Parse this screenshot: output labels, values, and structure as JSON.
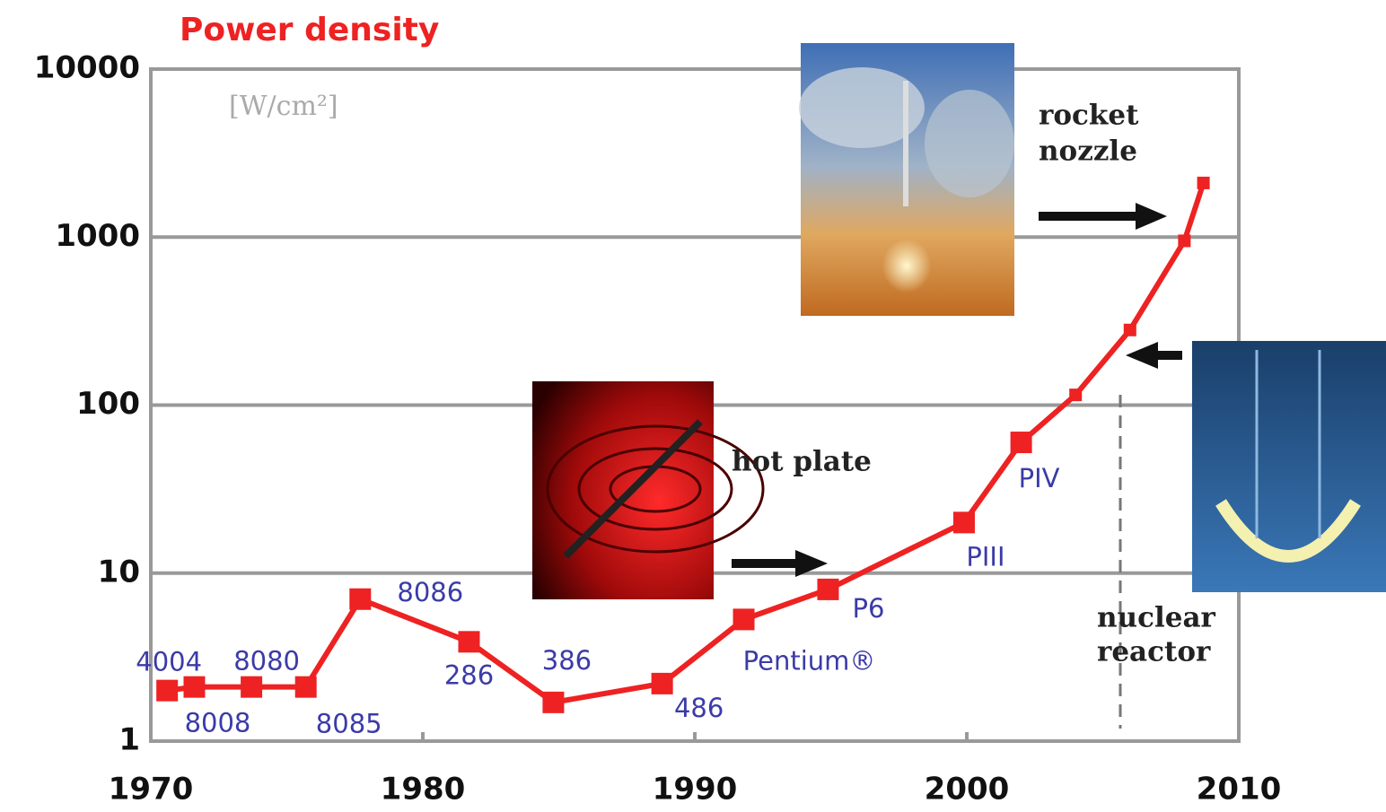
{
  "chart_data": {
    "type": "line",
    "title": "Power density",
    "y_unit": "[W/cm²]",
    "log_y": true,
    "grid": true,
    "xlim": [
      1970,
      2010
    ],
    "xticks": [
      1970,
      1980,
      1990,
      2000,
      2010
    ],
    "ylim": [
      1,
      10000
    ],
    "yticks": [
      1,
      10,
      100,
      1000,
      10000
    ],
    "series": [
      {
        "color": "#ee2222",
        "x": [
          1970.6,
          1971.6,
          1973.7,
          1975.7,
          1977.7,
          1981.7,
          1984.8,
          1988.8,
          1991.8,
          1994.9,
          1999.9,
          2002.0,
          2004.0,
          2006.0,
          2008.0,
          2008.7
        ],
        "values": [
          2,
          2.1,
          2.1,
          2.1,
          7,
          3.9,
          1.7,
          2.2,
          5.3,
          8,
          20,
          60,
          115,
          280,
          950,
          2100
        ],
        "point_labels": [
          "4004",
          "8008",
          "8080",
          "8085",
          "8086",
          "286",
          "386",
          "486",
          "Pentium®",
          "P6",
          "PIII",
          "PIV",
          null,
          null,
          null,
          null
        ]
      }
    ],
    "annotations": {
      "rocket": [
        "rocket",
        "nozzle"
      ],
      "hot_plate": [
        "hot plate"
      ],
      "reactor": [
        "nuclear",
        "reactor"
      ]
    }
  }
}
